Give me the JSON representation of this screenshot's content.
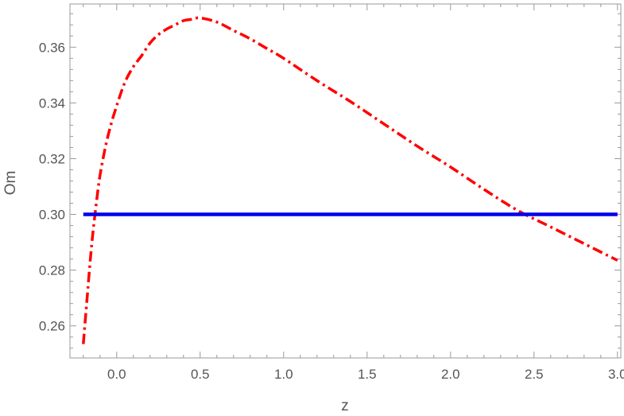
{
  "chart_data": {
    "type": "line",
    "xlabel": "z",
    "ylabel": "Om",
    "xlim": [
      -0.28,
      3.02
    ],
    "ylim": [
      0.2485,
      0.3755
    ],
    "x_ticks": [
      0.0,
      0.5,
      1.0,
      1.5,
      2.0,
      2.5,
      3.0
    ],
    "x_tick_labels": [
      "0.0",
      "0.5",
      "1.0",
      "1.5",
      "2.0",
      "2.5",
      "3.0"
    ],
    "y_ticks": [
      0.26,
      0.28,
      0.3,
      0.32,
      0.34,
      0.36
    ],
    "y_tick_labels": [
      "0.26",
      "0.28",
      "0.30",
      "0.32",
      "0.34",
      "0.36"
    ],
    "grid": false,
    "legend": "none",
    "series": [
      {
        "color": "#ff0000",
        "style": "dash-dot",
        "x": [
          -0.2,
          -0.18,
          -0.15,
          -0.12,
          -0.1,
          -0.07,
          -0.04,
          0.0,
          0.05,
          0.1,
          0.15,
          0.2,
          0.25,
          0.3,
          0.35,
          0.4,
          0.45,
          0.5,
          0.6,
          0.7,
          0.8,
          0.9,
          1.0,
          1.2,
          1.4,
          1.6,
          1.8,
          2.0,
          2.2,
          2.4,
          2.6,
          2.8,
          3.0
        ],
        "y": [
          0.2535,
          0.268,
          0.289,
          0.305,
          0.314,
          0.3235,
          0.331,
          0.339,
          0.3475,
          0.353,
          0.357,
          0.3615,
          0.3645,
          0.3665,
          0.368,
          0.3695,
          0.37,
          0.3705,
          0.369,
          0.366,
          0.363,
          0.3595,
          0.356,
          0.348,
          0.3405,
          0.3325,
          0.3245,
          0.317,
          0.309,
          0.3015,
          0.2955,
          0.2895,
          0.2835
        ]
      },
      {
        "color": "#0000ee",
        "style": "solid",
        "x": [
          -0.2,
          3.0
        ],
        "y": [
          0.3,
          0.3
        ]
      }
    ]
  }
}
